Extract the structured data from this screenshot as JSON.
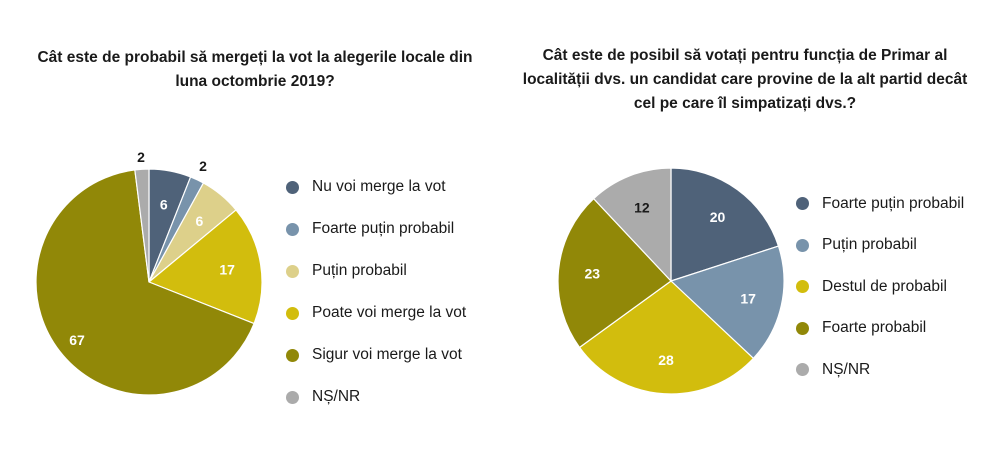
{
  "chart_data": [
    {
      "type": "pie",
      "title": "Cât este de probabil să mergeți la vot la alegerile locale din luna octombrie 2019?",
      "categories": [
        "Nu voi merge la vot",
        "Foarte puțin probabil",
        "Puțin probabil",
        "Poate voi merge la vot",
        "Sigur voi merge la vot",
        "NȘ/NR"
      ],
      "values": [
        6,
        2,
        6,
        17,
        67,
        2
      ],
      "colors": [
        "#4f6279",
        "#7893ab",
        "#ddd08a",
        "#d2bd0d",
        "#918808",
        "#ababab"
      ],
      "legend_position": "right"
    },
    {
      "type": "pie",
      "title": "Cât este de posibil să votați pentru funcția de Primar al localității dvs. un candidat care provine de la alt partid decât cel pe care îl simpatizați dvs.?",
      "categories": [
        "Foarte puțin probabil",
        "Puțin probabil",
        "Destul de probabil",
        "Foarte probabil",
        "NȘ/NR"
      ],
      "values": [
        20,
        17,
        28,
        23,
        12
      ],
      "colors": [
        "#4f6279",
        "#7893ab",
        "#d2bd0d",
        "#918808",
        "#ababab"
      ],
      "legend_position": "right"
    }
  ]
}
